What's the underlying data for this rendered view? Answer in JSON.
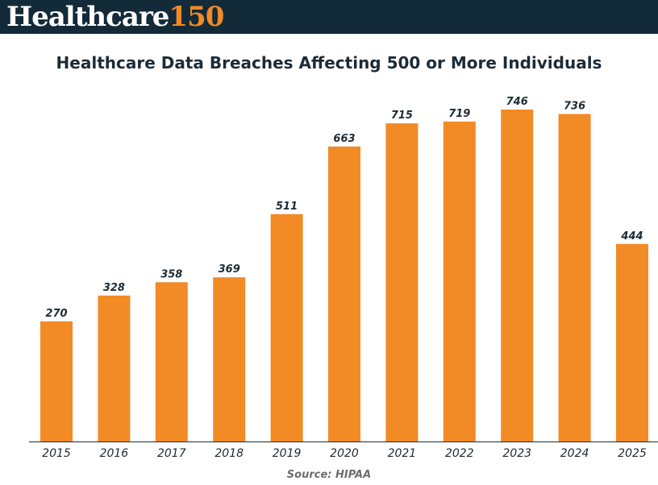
{
  "brand": {
    "word": "Healthcare",
    "number": "150"
  },
  "colors": {
    "header_bg": "#132a38",
    "bar": "#f28a26",
    "text": "#1d2b36"
  },
  "source": "Source: HIPAA",
  "chart_data": {
    "type": "bar",
    "title": "Healthcare Data Breaches Affecting 500 or More Individuals",
    "xlabel": "",
    "ylabel": "",
    "categories": [
      "2015",
      "2016",
      "2017",
      "2018",
      "2019",
      "2020",
      "2021",
      "2022",
      "2023",
      "2024",
      "2025"
    ],
    "values": [
      270,
      328,
      358,
      369,
      511,
      663,
      715,
      719,
      746,
      736,
      444
    ],
    "ylim": [
      0,
      800
    ],
    "grid": false,
    "legend": "none"
  }
}
